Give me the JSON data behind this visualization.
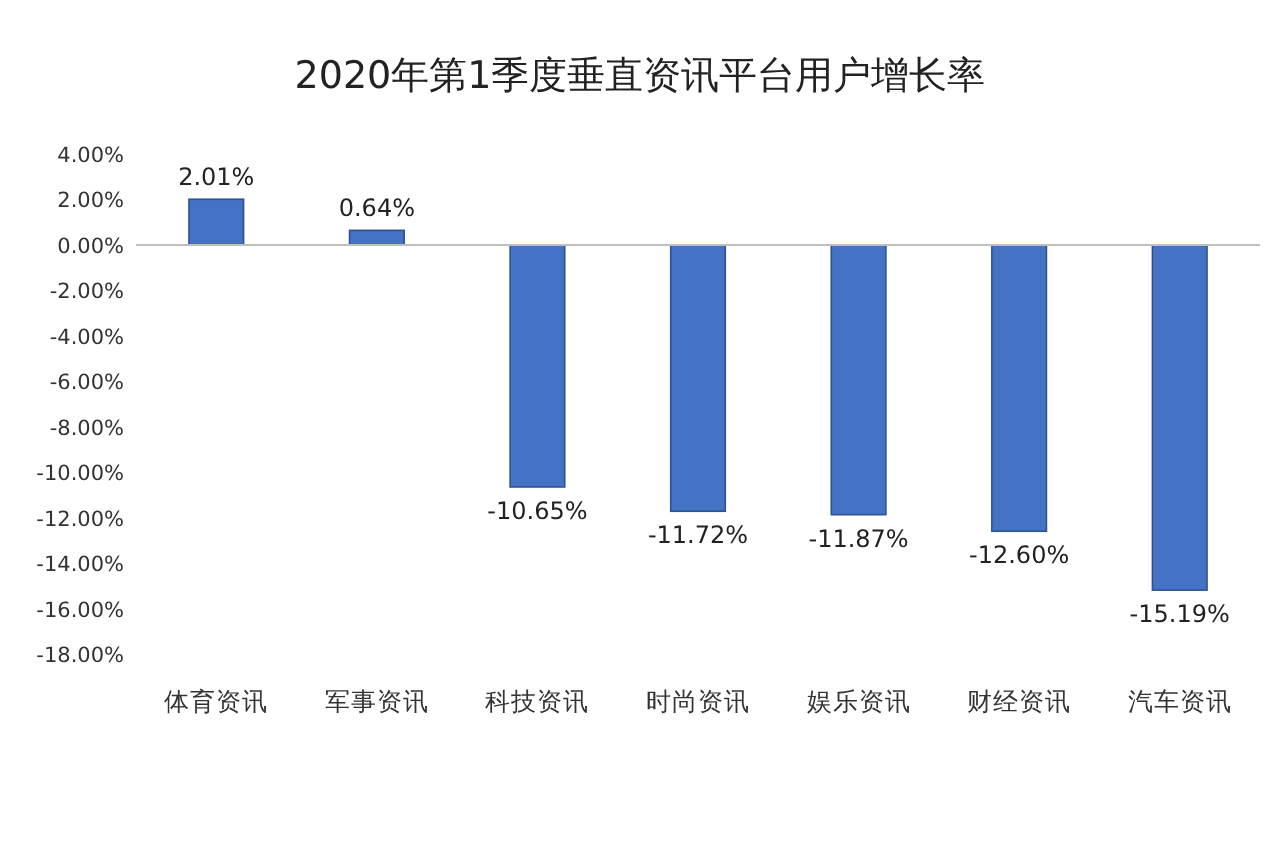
{
  "chart_data": {
    "type": "bar",
    "title": "2020年第1季度垂直资讯平台用户增长率",
    "categories": [
      "体育资讯",
      "军事资讯",
      "科技资讯",
      "时尚资讯",
      "娱乐资讯",
      "财经资讯",
      "汽车资讯"
    ],
    "values": [
      2.01,
      0.64,
      -10.65,
      -11.72,
      -11.87,
      -12.6,
      -15.19
    ],
    "value_labels": [
      "2.01%",
      "0.64%",
      "-10.65%",
      "-11.72%",
      "-11.87%",
      "-12.60%",
      "-15.19%"
    ],
    "color": "#4472c4",
    "ylim": [
      -18,
      4
    ],
    "yticks": [
      {
        "value": 4,
        "label": "4.00%"
      },
      {
        "value": 2,
        "label": "2.00%"
      },
      {
        "value": 0,
        "label": "0.00%"
      },
      {
        "value": -2,
        "label": "-2.00%"
      },
      {
        "value": -4,
        "label": "-4.00%"
      },
      {
        "value": -6,
        "label": "-6.00%"
      },
      {
        "value": -8,
        "label": "-8.00%"
      },
      {
        "value": -10,
        "label": "-10.00%"
      },
      {
        "value": -12,
        "label": "-12.00%"
      },
      {
        "value": -14,
        "label": "-14.00%"
      },
      {
        "value": -16,
        "label": "-16.00%"
      },
      {
        "value": -18,
        "label": "-18.00%"
      }
    ]
  }
}
